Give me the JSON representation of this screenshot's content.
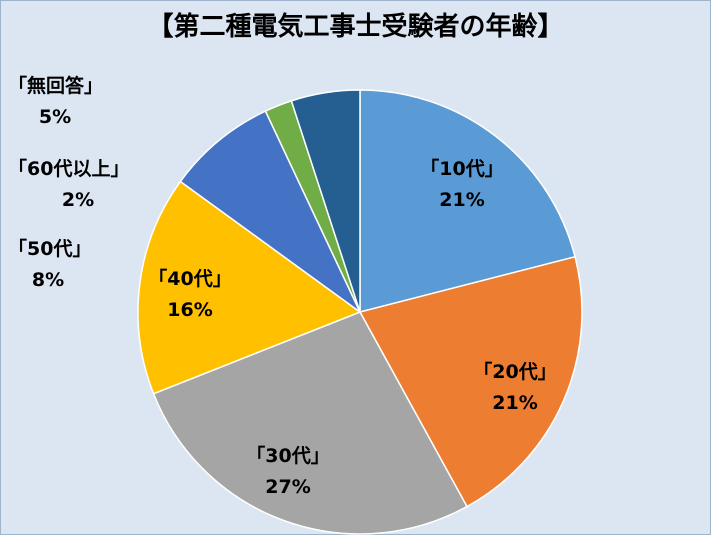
{
  "chart_data": {
    "type": "pie",
    "title": "【第二種電気工事士受験者の年齢】",
    "slices": [
      {
        "label": "「10代」",
        "value": 21,
        "value_label": "21%",
        "color": "#5b9bd5"
      },
      {
        "label": "「20代」",
        "value": 21,
        "value_label": "21%",
        "color": "#ed7d31"
      },
      {
        "label": "「30代」",
        "value": 27,
        "value_label": "27%",
        "color": "#a5a5a5"
      },
      {
        "label": "「40代」",
        "value": 16,
        "value_label": "16%",
        "color": "#ffc000"
      },
      {
        "label": "「50代」",
        "value": 8,
        "value_label": "8%",
        "color": "#4472c4"
      },
      {
        "label": "「60代以上」",
        "value": 2,
        "value_label": "2%",
        "color": "#70ad47"
      },
      {
        "label": "「無回答」",
        "value": 5,
        "value_label": "5%",
        "color": "#255e91"
      }
    ],
    "start": "12 o'clock",
    "direction": "clockwise",
    "legend": "none"
  }
}
